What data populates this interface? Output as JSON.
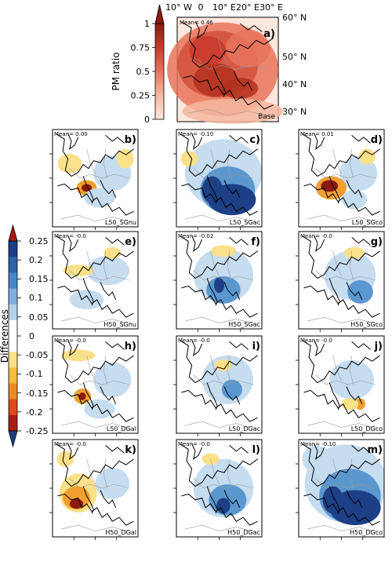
{
  "colors": {
    "map_background": "#ffffff",
    "land_outline": "#000000",
    "border_line": "#999999",
    "red_dark": "#8b1a10",
    "orange": "#f0a030",
    "yellow": "#fbe08a",
    "light_blue": "#c6dcef",
    "mid_blue": "#5a97cf",
    "dark_blue": "#1c3f86"
  },
  "chart_data": [
    {
      "type": "heatmap",
      "panel_id": "a",
      "label": "a)",
      "scenario": "Base",
      "mean_text": "Mean= 0.46",
      "mean": 0.46,
      "colorbar": {
        "label": "PM ratio",
        "ticks": [
          "1",
          "0.75",
          "0.5",
          "0.25",
          "0"
        ],
        "range": [
          0,
          1
        ],
        "colors": [
          "#fde8df",
          "#f5b7a0",
          "#e8735a",
          "#c93a2c",
          "#8b1a10"
        ]
      },
      "x_ticks": [
        "10° W",
        "0",
        "10° E",
        "20° E",
        "30° E"
      ],
      "y_ticks": [
        "60° N",
        "50° N",
        "40° N",
        "30° N"
      ]
    },
    {
      "type": "heatmap",
      "colorbar": {
        "label": "Differences",
        "ticks": [
          "0.25",
          "0.2",
          "0.15",
          "0.1",
          "0.05",
          "0",
          "-0.05",
          "-0.1",
          "-0.15",
          "-0.2",
          "-0.25"
        ],
        "range": [
          -0.25,
          0.25
        ],
        "colors": [
          "#1c3f86",
          "#2f62a8",
          "#4a86c4",
          "#7eb0db",
          "#b4d1ea",
          "#ffffff",
          "#ffffff",
          "#fbe08a",
          "#f5bc3e",
          "#ee8a26",
          "#dc4a1e",
          "#a81c14"
        ]
      },
      "panels": [
        {
          "panel_id": "b",
          "label": "b)",
          "scenario": "L50_SGnu",
          "mean_text": "Mean= 0.00"
        },
        {
          "panel_id": "c",
          "label": "c)",
          "scenario": "L50_SGac",
          "mean_text": "Mean= -0.10"
        },
        {
          "panel_id": "d",
          "label": "d)",
          "scenario": "L50_SGco",
          "mean_text": "Mean= 0.01"
        },
        {
          "panel_id": "e",
          "label": "e)",
          "scenario": "H50_SGnu",
          "mean_text": "Mean= -0.0"
        },
        {
          "panel_id": "f",
          "label": "f)",
          "scenario": "H50_SGac",
          "mean_text": "Mean= -0.02"
        },
        {
          "panel_id": "g",
          "label": "g)",
          "scenario": "H50_SGco",
          "mean_text": "Mean= -0.0"
        },
        {
          "panel_id": "h",
          "label": "h)",
          "scenario": "L50_DGal",
          "mean_text": "Mean= -0.0"
        },
        {
          "panel_id": "i",
          "label": "i)",
          "scenario": "L50_DGac",
          "mean_text": "Mean= -0.0"
        },
        {
          "panel_id": "j",
          "label": "j)",
          "scenario": "L50_DGco",
          "mean_text": "Mean= -0.0"
        },
        {
          "panel_id": "k",
          "label": "k)",
          "scenario": "H50_DGal",
          "mean_text": "Mean= -0.0"
        },
        {
          "panel_id": "l",
          "label": "l)",
          "scenario": "H50_DGac",
          "mean_text": "Mean= -0.0"
        },
        {
          "panel_id": "m",
          "label": "m)",
          "scenario": "H50_DGco",
          "mean_text": "Mean= -0.10"
        }
      ]
    }
  ]
}
